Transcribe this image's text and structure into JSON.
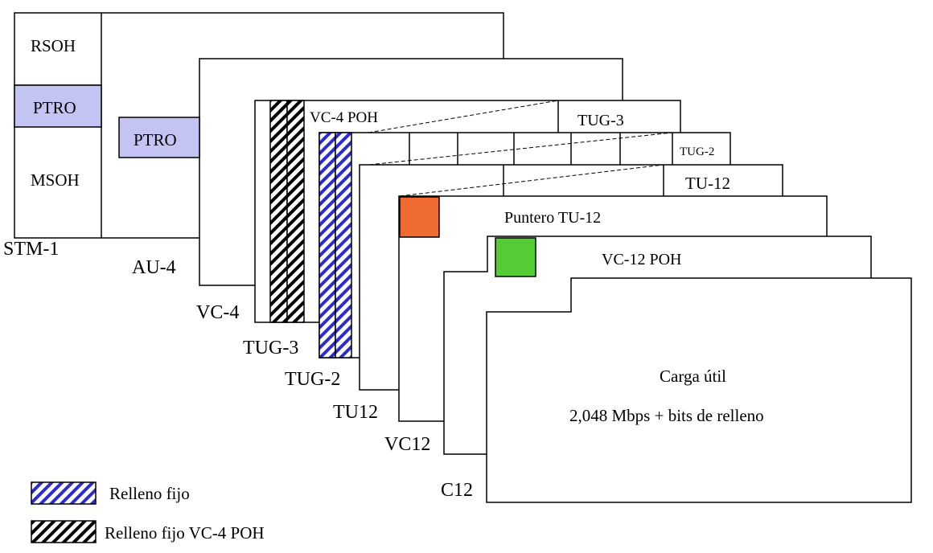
{
  "frames": {
    "stm1": {
      "label": "STM-1",
      "rsoh": "RSOH",
      "ptro": "PTRO",
      "msoh": "MSOH"
    },
    "au4": {
      "label": "AU-4",
      "ptro": "PTRO"
    },
    "vc4": {
      "label": "VC-4",
      "poh": "VC-4 POH"
    },
    "tug3": {
      "label": "TUG-3",
      "tag": "TUG-3"
    },
    "tug2": {
      "label": "TUG-2",
      "tag": "TUG-2"
    },
    "tu12": {
      "label": "TU12",
      "tag": "TU-12"
    },
    "vc12": {
      "label": "VC12",
      "pointer": "Puntero TU-12"
    },
    "c12": {
      "label": "C12",
      "poh": "VC-12 POH",
      "payload_title": "Carga útil",
      "payload_rate": "2,048 Mbps + bits de relleno"
    }
  },
  "legend": [
    {
      "label": "Relleno fijo",
      "pattern": "blue-hatch"
    },
    {
      "label": "Relleno fijo VC-4 POH",
      "pattern": "black-hatch"
    }
  ],
  "colors": {
    "ptro": "#c4c4f4",
    "blue_hatch": "#2b2bd0",
    "black_hatch": "#000000",
    "tu12_pointer": "#ee6a30",
    "vc12_poh": "#55cc33"
  }
}
